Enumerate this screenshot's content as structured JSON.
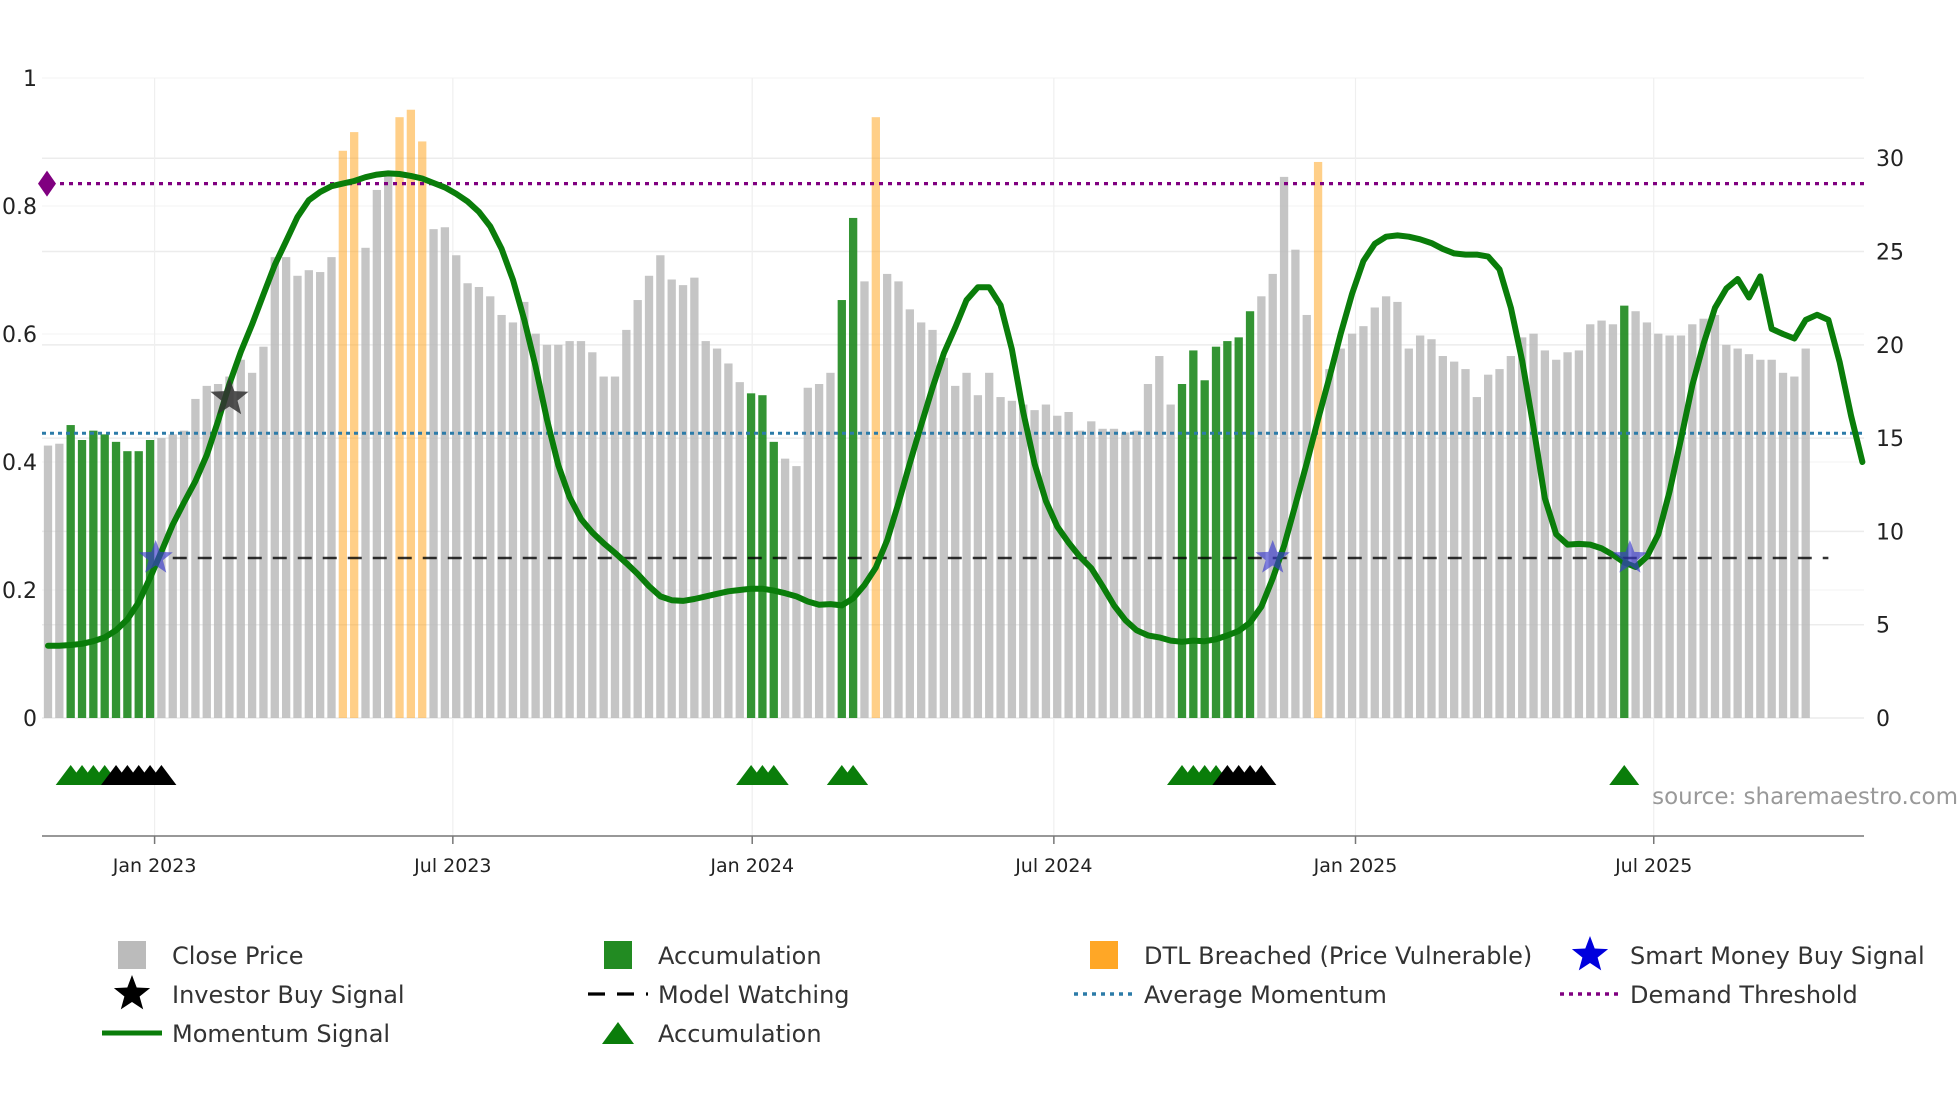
{
  "chart_data": {
    "type": "bar",
    "title": "",
    "source": "source: sharemaestro.com",
    "left_axis": {
      "ylim": [
        0,
        1
      ],
      "ticks": [
        0,
        0.2,
        0.4,
        0.6,
        0.8,
        1
      ],
      "tick_labels": [
        "0",
        "0.2",
        "0.4",
        "0.6",
        "0.8",
        "1"
      ]
    },
    "right_axis": {
      "ylim": [
        0,
        34.3
      ],
      "ticks": [
        0,
        5,
        10,
        15,
        20,
        25,
        30
      ],
      "tick_labels": [
        "0",
        "5",
        "10",
        "15",
        "20",
        "25",
        "30"
      ]
    },
    "x_axis": {
      "start_week": 0,
      "num_weeks": 160,
      "ticks": [
        {
          "week": 9.4,
          "label": "Jan 2023"
        },
        {
          "week": 35.7,
          "label": "Jul 2023"
        },
        {
          "week": 62.1,
          "label": "Jan 2024"
        },
        {
          "week": 88.7,
          "label": "Jul 2024"
        },
        {
          "week": 115.3,
          "label": "Jan 2025"
        },
        {
          "week": 141.6,
          "label": "Jul 2025"
        }
      ]
    },
    "close_price": [
      14.6,
      14.7,
      15.7,
      14.9,
      15.4,
      15.2,
      14.8,
      14.3,
      14.3,
      14.9,
      15.0,
      15.2,
      15.4,
      17.1,
      17.8,
      17.9,
      18.3,
      19.2,
      18.5,
      19.9,
      24.7,
      24.7,
      23.7,
      24.0,
      23.9,
      24.7,
      25.5,
      23.6,
      25.2,
      28.3,
      29.1,
      29.5,
      28.7,
      27.6,
      26.2,
      26.3,
      24.8,
      23.3,
      23.1,
      22.6,
      21.6,
      21.2,
      22.3,
      20.6,
      20.0,
      20.0,
      20.2,
      20.2,
      19.6,
      18.3,
      18.3,
      20.8,
      22.4,
      23.7,
      24.8,
      23.5,
      23.2,
      23.6,
      20.2,
      19.8,
      19.0,
      18.0,
      17.4,
      17.3,
      14.8,
      13.9,
      13.5,
      17.7,
      17.9,
      18.5,
      22.4,
      26.8,
      23.4,
      21.9,
      23.8,
      23.4,
      21.9,
      21.2,
      20.8,
      19.3,
      17.8,
      18.5,
      17.3,
      18.5,
      17.2,
      17.0,
      16.8,
      16.5,
      16.8,
      16.2,
      16.4,
      15.4,
      15.9,
      15.5,
      15.5,
      15.3,
      15.4,
      17.9,
      19.4,
      16.8,
      17.9,
      19.7,
      18.1,
      19.9,
      20.2,
      20.4,
      21.8,
      22.6,
      23.8,
      29.0,
      25.1,
      21.6,
      18.9,
      18.7,
      19.8,
      20.6,
      21.0,
      22.0,
      22.6,
      22.3,
      19.8,
      20.5,
      20.3,
      19.4,
      19.1,
      18.7,
      17.2,
      18.4,
      18.7,
      19.4,
      20.4,
      20.6,
      19.7,
      19.2,
      19.6,
      19.7,
      21.1,
      21.3,
      21.1,
      22.1,
      21.8,
      21.2,
      20.6,
      20.5,
      20.5,
      21.1,
      21.4,
      21.6,
      20.0,
      19.8,
      19.5,
      19.2,
      19.2,
      18.5,
      18.3,
      19.8
    ],
    "momentum_signal": [
      0.113,
      0.113,
      0.114,
      0.116,
      0.12,
      0.126,
      0.137,
      0.154,
      0.181,
      0.219,
      0.26,
      0.302,
      0.337,
      0.37,
      0.411,
      0.464,
      0.522,
      0.572,
      0.615,
      0.662,
      0.708,
      0.745,
      0.783,
      0.809,
      0.822,
      0.831,
      0.835,
      0.839,
      0.845,
      0.849,
      0.851,
      0.85,
      0.847,
      0.843,
      0.836,
      0.829,
      0.819,
      0.807,
      0.791,
      0.768,
      0.733,
      0.685,
      0.622,
      0.549,
      0.466,
      0.395,
      0.345,
      0.311,
      0.29,
      0.273,
      0.258,
      0.242,
      0.225,
      0.206,
      0.19,
      0.184,
      0.183,
      0.186,
      0.19,
      0.194,
      0.198,
      0.2,
      0.202,
      0.202,
      0.199,
      0.195,
      0.19,
      0.182,
      0.177,
      0.178,
      0.176,
      0.187,
      0.208,
      0.235,
      0.278,
      0.336,
      0.398,
      0.458,
      0.516,
      0.57,
      0.61,
      0.653,
      0.673,
      0.673,
      0.645,
      0.576,
      0.478,
      0.397,
      0.339,
      0.299,
      0.274,
      0.252,
      0.234,
      0.206,
      0.176,
      0.153,
      0.137,
      0.129,
      0.126,
      0.121,
      0.119,
      0.121,
      0.12,
      0.123,
      0.129,
      0.136,
      0.149,
      0.174,
      0.218,
      0.269,
      0.333,
      0.398,
      0.467,
      0.532,
      0.601,
      0.663,
      0.714,
      0.741,
      0.752,
      0.754,
      0.752,
      0.748,
      0.742,
      0.733,
      0.726,
      0.724,
      0.724,
      0.721,
      0.701,
      0.641,
      0.558,
      0.454,
      0.343,
      0.287,
      0.271,
      0.272,
      0.271,
      0.265,
      0.255,
      0.243,
      0.236,
      0.252,
      0.287,
      0.354,
      0.436,
      0.52,
      0.585,
      0.641,
      0.671,
      0.686,
      0.657,
      0.69,
      0.608,
      0.6,
      0.593,
      0.622,
      0.63,
      0.622,
      0.556,
      0.472,
      0.4
    ],
    "average_momentum": 0.445,
    "demand_threshold": 0.835,
    "model_watching_level": 0.25,
    "accumulation_bars": [
      [
        2,
        9
      ],
      [
        62,
        64
      ],
      [
        70,
        71
      ],
      [
        100,
        106
      ],
      [
        139,
        139
      ]
    ],
    "dtl_breached": [
      {
        "week": 26,
        "value": 30.4
      },
      {
        "week": 27,
        "value": 31.4
      },
      {
        "week": 31,
        "value": 32.2
      },
      {
        "week": 32,
        "value": 32.6
      },
      {
        "week": 33,
        "value": 30.9
      },
      {
        "week": 73,
        "value": 32.2
      },
      {
        "week": 112,
        "value": 29.8
      }
    ],
    "investor_buy_signals": [
      {
        "week": 16,
        "value": 0.5
      }
    ],
    "smart_money_buy_signals": [
      {
        "week": 9.5,
        "value": 0.25
      },
      {
        "week": 108,
        "value": 0.25
      },
      {
        "week": 139.5,
        "value": 0.25
      }
    ],
    "green_triangles": [
      2,
      3,
      4,
      5,
      62,
      63,
      64,
      70,
      71,
      100,
      101,
      102,
      103,
      139
    ],
    "black_triangles": [
      6,
      7,
      8,
      9,
      10,
      104,
      105,
      106,
      107
    ],
    "legend": [
      {
        "label": "Close Price",
        "marker": "square",
        "color": "#bbbbbb"
      },
      {
        "label": "Accumulation",
        "marker": "square",
        "color": "#228b22"
      },
      {
        "label": "DTL Breached (Price Vulnerable)",
        "marker": "square",
        "color": "#ffa726"
      },
      {
        "label": "Smart Money Buy Signal",
        "marker": "star",
        "color": "#0000dd"
      },
      {
        "label": "Investor Buy Signal",
        "marker": "star",
        "color": "#000000"
      },
      {
        "label": "Model Watching",
        "marker": "dash",
        "color": "#000000"
      },
      {
        "label": "Average Momentum",
        "marker": "dot",
        "color": "#2c7ba8"
      },
      {
        "label": "Demand Threshold",
        "marker": "dot",
        "color": "#800080"
      },
      {
        "label": "Momentum Signal",
        "marker": "line",
        "color": "#0a7d0a"
      },
      {
        "label": "Accumulation",
        "marker": "triangle",
        "color": "#0a7d0a"
      }
    ],
    "colors": {
      "close": "#bbbbbb",
      "accumulation": "#228b22",
      "dtl": "#ffa726",
      "momentum": "#0a7d0a",
      "average": "#2c7ba8",
      "threshold": "#800080",
      "watching": "#000000",
      "smart_money": "#3a3acc",
      "investor": "#333333"
    }
  }
}
